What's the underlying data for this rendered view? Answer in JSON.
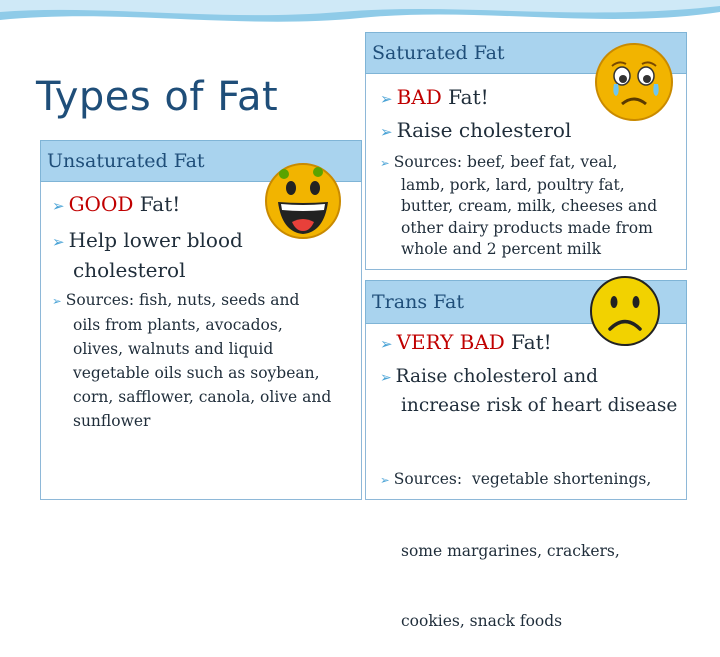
{
  "title": "Types of Fat",
  "colors": {
    "accent": "#4aa3d6",
    "header_bg": "#a9d3ee",
    "emphasis": "#c00000",
    "face": "#f2b400"
  },
  "saturated": {
    "heading": "Saturated Fat",
    "bullet1_emph": "BAD",
    "bullet1_rest": " Fat!",
    "bullet2": "Raise cholesterol",
    "sources_label": "Sources",
    "sources_lines": [
      ": beef, beef fat, veal,",
      "lamb, pork, lard, poultry fat,",
      "butter, cream, milk, cheeses and",
      "other dairy products made from",
      "whole and 2 percent milk"
    ],
    "face_icon": "sad-crying-face-icon"
  },
  "unsaturated": {
    "heading": "Unsaturated Fat",
    "bullet1_emph": "GOOD",
    "bullet1_rest": " Fat!",
    "bullet2_lines": [
      "Help lower blood",
      "cholesterol"
    ],
    "sources_label": "Sources",
    "sources_lines": [
      ": fish, nuts, seeds and",
      "oils from plants, avocados,",
      "olives, walnuts and liquid",
      "vegetable oils such as soybean,",
      "corn, safflower, canola, olive and",
      "sunflower"
    ],
    "face_icon": "laughing-face-icon"
  },
  "trans": {
    "heading": "Trans Fat",
    "bullet1_emph": "VERY BAD",
    "bullet1_rest": " Fat!",
    "bullet2_lines": [
      "Raise cholesterol and",
      "increase risk of heart disease"
    ],
    "sources_label": "Sources:",
    "sources_lines": [
      "  vegetable shortenings,",
      "some margarines, crackers,",
      "cookies, snack foods"
    ],
    "face_icon": "frowning-face-icon"
  }
}
